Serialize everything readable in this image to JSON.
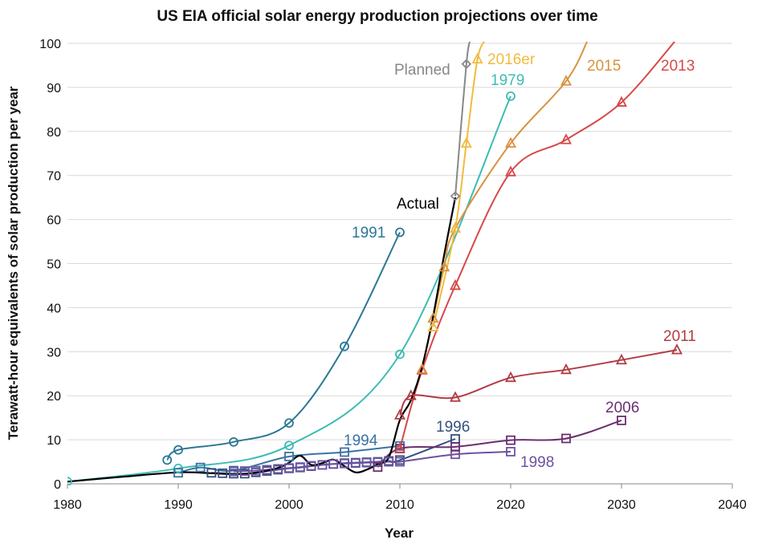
{
  "chart_data": {
    "type": "line",
    "title": "US EIA official solar energy production projections over time",
    "xlabel": "Year",
    "ylabel": "Terawatt-hour equivalents of solar production per year",
    "xlim": [
      1980,
      2040
    ],
    "ylim": [
      0,
      100
    ],
    "xticks": [
      1980,
      1990,
      2000,
      2010,
      2020,
      2030,
      2040
    ],
    "yticks": [
      0,
      10,
      20,
      30,
      40,
      50,
      60,
      70,
      80,
      90,
      100
    ],
    "grid": "horizontal",
    "legend": "none",
    "series": [
      {
        "name": "1979",
        "color": "#3dbcb3",
        "marker": "circle",
        "x": [
          1980,
          1990,
          2000,
          2010,
          2020
        ],
        "y": [
          0.5,
          3.5,
          8.7,
          29.4,
          88
        ]
      },
      {
        "name": "1991",
        "color": "#2c7795",
        "marker": "circle",
        "x": [
          1989,
          1990,
          1995,
          2000,
          2005,
          2010
        ],
        "y": [
          5.4,
          7.7,
          9.5,
          13.8,
          31.2,
          57.1
        ]
      },
      {
        "name": "1994",
        "color": "#3a72a4",
        "marker": "square",
        "x": [
          1990,
          1992,
          1995,
          2000,
          2005,
          2010
        ],
        "y": [
          2.5,
          3.7,
          3.0,
          6.2,
          7.2,
          8.6
        ]
      },
      {
        "name": "1996",
        "color": "#34507e",
        "marker": "square",
        "x": [
          1993,
          1994,
          1995,
          1996,
          1997,
          1998,
          1999,
          2000,
          2001,
          2002,
          2003,
          2004,
          2005,
          2006,
          2007,
          2008,
          2009,
          2010,
          2015
        ],
        "y": [
          2.5,
          2.4,
          2.3,
          2.3,
          2.6,
          2.9,
          3.2,
          3.5,
          3.7,
          4.0,
          4.3,
          4.5,
          4.7,
          4.8,
          4.9,
          5.0,
          5.2,
          5.4,
          10.2
        ]
      },
      {
        "name": "1998",
        "color": "#6d52a0",
        "marker": "square",
        "x": [
          1995,
          1996,
          1997,
          1998,
          1999,
          2000,
          2001,
          2002,
          2003,
          2004,
          2005,
          2006,
          2007,
          2008,
          2009,
          2010,
          2015,
          2020
        ],
        "y": [
          2.8,
          2.9,
          3.0,
          3.2,
          3.4,
          3.6,
          3.8,
          4.1,
          4.3,
          4.5,
          4.6,
          4.7,
          4.8,
          4.9,
          5.0,
          5.0,
          6.7,
          7.3
        ]
      },
      {
        "name": "2006",
        "color": "#6b2e71",
        "marker": "square",
        "x": [
          2008,
          2010,
          2015,
          2020,
          2025,
          2030
        ],
        "y": [
          3.8,
          8.0,
          8.4,
          9.9,
          10.3,
          14.4
        ]
      },
      {
        "name": "2011",
        "color": "#b23c45",
        "marker": "triangle",
        "x": [
          2010,
          2011,
          2015,
          2020,
          2025,
          2030,
          2035
        ],
        "y": [
          15.6,
          20.0,
          19.6,
          24.1,
          25.9,
          28.1,
          30.4
        ]
      },
      {
        "name": "2013",
        "color": "#d74848",
        "marker": "triangle",
        "x": [
          2010,
          2012,
          2015,
          2020,
          2025,
          2030,
          2035
        ],
        "y": [
          8.0,
          25.8,
          45,
          70.8,
          78.1,
          86.6,
          101
        ]
      },
      {
        "name": "2015",
        "color": "#d8923e",
        "marker": "triangle",
        "x": [
          2012,
          2013,
          2014,
          2015,
          2020,
          2025,
          2027
        ],
        "y": [
          26,
          37.6,
          49.2,
          58,
          77.3,
          91.4,
          101
        ]
      },
      {
        "name": "2016er",
        "color": "#f1bb3e",
        "marker": "triangle",
        "x": [
          2013,
          2015,
          2016,
          2017,
          2017.8
        ],
        "y": [
          35.6,
          58,
          77.3,
          96.4,
          101
        ]
      },
      {
        "name": "Planned",
        "color": "#888888",
        "marker": "diamond",
        "x": [
          2015,
          2016,
          2016.4
        ],
        "y": [
          65.3,
          95.3,
          101
        ]
      },
      {
        "name": "Actual",
        "color": "#000000",
        "marker": "none",
        "x": [
          1980,
          1985,
          1990,
          1993,
          1995,
          1997,
          1999,
          2000,
          2001,
          2002,
          2003,
          2004,
          2005,
          2006,
          2007,
          2008,
          2009,
          2010,
          2011,
          2012,
          2013,
          2014,
          2015
        ],
        "y": [
          0.5,
          1.6,
          2.6,
          2.4,
          2.2,
          2.5,
          3.6,
          4.8,
          6.4,
          4.3,
          4.7,
          5.5,
          4.0,
          2.6,
          3.2,
          4.5,
          6.0,
          14.5,
          19.0,
          26.5,
          38.0,
          52.0,
          65.0
        ]
      }
    ]
  }
}
